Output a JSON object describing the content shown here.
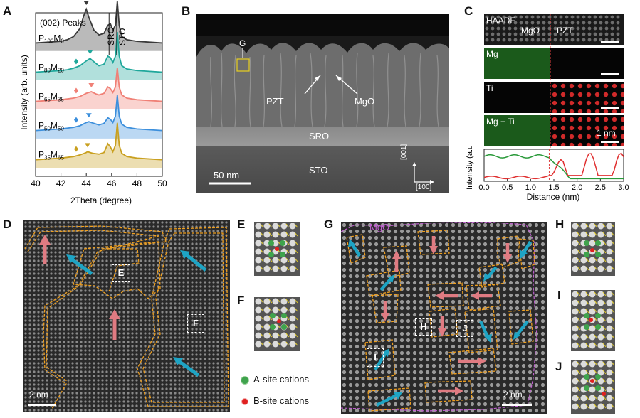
{
  "panels": {
    "A": "A",
    "B": "B",
    "C": "C",
    "D": "D",
    "E": "E",
    "F": "F",
    "G": "G",
    "H": "H",
    "I": "I",
    "J": "J"
  },
  "chart_data": {
    "type": "line",
    "title": "",
    "annotation": "(002) Peaks",
    "xlabel": "2Theta (degree)",
    "ylabel": "Intensity (arb. units)",
    "xlim": [
      40,
      50
    ],
    "xticks": [
      "40",
      "42",
      "44",
      "46",
      "48",
      "50"
    ],
    "peak_labels": [
      "SRO",
      "STO"
    ],
    "series": [
      {
        "name": "P100M0",
        "sub_p": "100",
        "sub_m": "0",
        "color": "#3a3a3a",
        "marker": "triangle",
        "marker_x": 44.0,
        "offset": 4,
        "x": [
          40,
          41,
          42,
          42.5,
          43,
          43.5,
          43.8,
          44.0,
          44.2,
          44.6,
          45.0,
          45.4,
          45.7,
          45.9,
          46.1,
          46.3,
          46.45,
          46.6,
          46.8,
          47.2,
          48,
          49,
          50
        ],
        "y": [
          0.5,
          0.55,
          0.6,
          0.7,
          0.9,
          1.4,
          2.2,
          2.6,
          2.1,
          1.3,
          1.0,
          1.1,
          1.6,
          1.7,
          1.3,
          1.6,
          3.1,
          1.6,
          0.9,
          0.7,
          0.6,
          0.55,
          0.5
        ]
      },
      {
        "name": "P80M20",
        "sub_p": "80",
        "sub_m": "20",
        "color": "#1fa79b",
        "marker": "triangle",
        "marker_x": 44.3,
        "offset": 3,
        "x": [
          40,
          41,
          42,
          42.5,
          43,
          43.5,
          44.0,
          44.3,
          44.6,
          45.0,
          45.4,
          45.7,
          45.9,
          46.1,
          46.3,
          46.45,
          46.6,
          46.8,
          47.2,
          48,
          49,
          50
        ],
        "y": [
          0.5,
          0.55,
          0.6,
          0.65,
          0.75,
          0.9,
          1.2,
          1.35,
          1.15,
          0.9,
          1.0,
          1.5,
          1.4,
          1.1,
          1.5,
          3.0,
          1.5,
          0.9,
          0.7,
          0.6,
          0.55,
          0.5
        ]
      },
      {
        "name": "P65M35",
        "sub_p": "65",
        "sub_m": "35",
        "color": "#f08076",
        "marker": "triangle",
        "marker_x": 44.4,
        "offset": 2,
        "x": [
          40,
          41,
          42,
          42.5,
          43,
          43.5,
          44.0,
          44.4,
          44.8,
          45.0,
          45.4,
          45.7,
          45.9,
          46.1,
          46.3,
          46.45,
          46.6,
          46.8,
          47.2,
          48,
          49,
          50
        ],
        "y": [
          0.5,
          0.55,
          0.6,
          0.65,
          0.7,
          0.8,
          1.0,
          1.1,
          0.95,
          0.9,
          1.0,
          1.4,
          1.3,
          1.05,
          1.4,
          2.6,
          1.4,
          0.9,
          0.7,
          0.6,
          0.55,
          0.5
        ]
      },
      {
        "name": "P50M50",
        "sub_p": "50",
        "sub_m": "50",
        "color": "#3c8fdc",
        "marker": "triangle",
        "marker_x": 44.2,
        "offset": 1,
        "x": [
          40,
          41,
          42,
          42.5,
          43,
          43.5,
          44.0,
          44.2,
          44.6,
          45.0,
          45.4,
          45.7,
          45.9,
          46.1,
          46.3,
          46.45,
          46.6,
          46.8,
          47.2,
          48,
          49,
          50
        ],
        "y": [
          0.5,
          0.55,
          0.6,
          0.65,
          0.7,
          0.8,
          1.0,
          1.05,
          0.95,
          0.85,
          0.95,
          1.3,
          1.2,
          1.0,
          1.4,
          2.7,
          1.4,
          0.9,
          0.7,
          0.6,
          0.55,
          0.5
        ]
      },
      {
        "name": "P35M65",
        "sub_p": "35",
        "sub_m": "65",
        "color": "#c9a020",
        "marker": "triangle",
        "marker_x": 44.1,
        "offset": 0,
        "x": [
          40,
          41,
          42,
          42.5,
          43,
          43.5,
          44.0,
          44.1,
          44.5,
          45.0,
          45.4,
          45.7,
          45.9,
          46.1,
          46.3,
          46.45,
          46.6,
          46.8,
          47.2,
          48,
          49,
          50
        ],
        "y": [
          0.5,
          0.55,
          0.6,
          0.65,
          0.7,
          0.8,
          0.95,
          1.0,
          0.9,
          0.85,
          0.95,
          1.5,
          1.3,
          1.0,
          1.4,
          2.8,
          1.4,
          0.9,
          0.7,
          0.6,
          0.55,
          0.5
        ]
      }
    ],
    "diamond_markers_x": 43.2
  },
  "panel_b": {
    "label_g": "G",
    "pzt": "PZT",
    "mgo": "MgO",
    "sro": "SRO",
    "sto": "STO",
    "scale": "50 nm",
    "axis_up": "[001]",
    "axis_right": "[100]"
  },
  "panel_c": {
    "haadf": "HAADF",
    "mgo": "MgO",
    "pzt": "PZT",
    "mg": "Mg",
    "ti": "Ti",
    "mgti": "Mg + Ti",
    "scale": "1 nm",
    "ylabel": "Intensity (a.u.)",
    "xlabel": "Distance (nm)",
    "xticks": [
      "0.0",
      "0.5",
      "1.0",
      "1.5",
      "2.0",
      "2.5",
      "3.0"
    ],
    "xlim": [
      0,
      3.0
    ]
  },
  "panel_d": {
    "scale": "2 nm",
    "box_e": "E",
    "box_f": "F"
  },
  "panel_g": {
    "mgo": "MgO",
    "scale": "2 nm",
    "box_h": "H",
    "box_i": "I",
    "box_j": "J"
  },
  "legend": {
    "a_site": "A-site cations",
    "b_site": "B-site cations",
    "a_color": "#3fa34d",
    "b_color": "#e02020"
  },
  "colors": {
    "arrow_pink": "#e07b82",
    "arrow_cyan": "#1ea4c4",
    "domain_line": "#f0a020",
    "mgo_line": "#c060d0"
  }
}
